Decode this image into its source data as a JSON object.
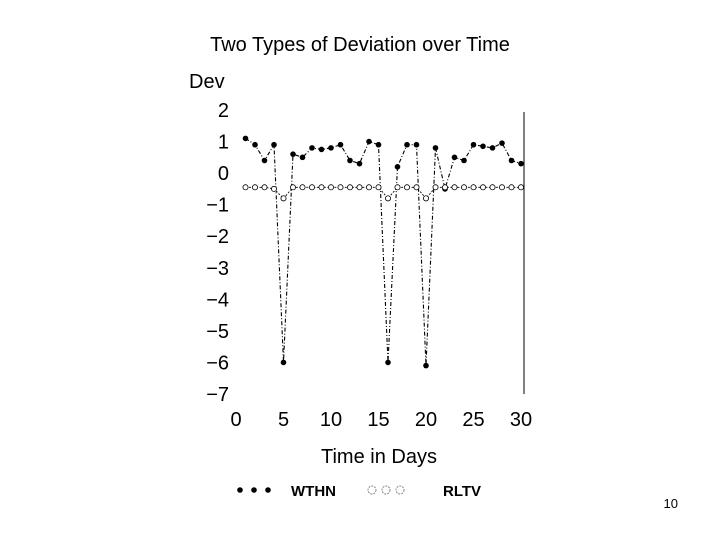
{
  "chart_data": {
    "type": "line",
    "title": "Two Types of Deviation over Time",
    "ylabel": "Dev",
    "xlabel": "Time in Days",
    "xlim": [
      0,
      30
    ],
    "ylim": [
      -7,
      2
    ],
    "xticks": [
      "0",
      "5",
      "10",
      "15",
      "20",
      "25",
      "30"
    ],
    "yticks": [
      "2",
      "1",
      "0",
      "-1",
      "-2",
      "-3",
      "-4",
      "-5",
      "-6",
      "-7"
    ],
    "grid": false,
    "legend_position": "bottom",
    "series": [
      {
        "name": "WTHN",
        "marker": "filled-circle",
        "x": [
          1,
          2,
          3,
          4,
          5,
          6,
          7,
          8,
          9,
          10,
          11,
          12,
          13,
          14,
          15,
          16,
          17,
          18,
          19,
          20,
          21,
          22,
          23,
          24,
          25,
          26,
          27,
          28,
          29,
          30
        ],
        "y": [
          1.1,
          0.9,
          0.4,
          0.9,
          -6.0,
          0.6,
          0.5,
          0.8,
          0.75,
          0.8,
          0.9,
          0.4,
          0.3,
          1.0,
          0.9,
          -6.0,
          0.2,
          0.9,
          0.9,
          -6.1,
          0.8,
          -0.5,
          0.5,
          0.4,
          0.9,
          0.85,
          0.8,
          0.95,
          0.4,
          0.3
        ]
      },
      {
        "name": "RLTV",
        "marker": "open-circle",
        "x": [
          1,
          2,
          3,
          4,
          5,
          6,
          7,
          8,
          9,
          10,
          11,
          12,
          13,
          14,
          15,
          16,
          17,
          18,
          19,
          20,
          21,
          22,
          23,
          24,
          25,
          26,
          27,
          28,
          29,
          30
        ],
        "y": [
          -0.45,
          -0.45,
          -0.45,
          -0.5,
          -0.8,
          -0.45,
          -0.45,
          -0.45,
          -0.45,
          -0.45,
          -0.45,
          -0.45,
          -0.45,
          -0.45,
          -0.45,
          -0.8,
          -0.45,
          -0.45,
          -0.45,
          -0.8,
          -0.45,
          -0.45,
          -0.45,
          -0.45,
          -0.45,
          -0.45,
          -0.45,
          -0.45,
          -0.45,
          -0.45
        ]
      }
    ]
  },
  "legend": {
    "items": [
      {
        "label": "WTHN",
        "marker": "filled-circle"
      },
      {
        "label": "RLTV",
        "marker": "open-circle"
      }
    ]
  },
  "page_number": "10"
}
